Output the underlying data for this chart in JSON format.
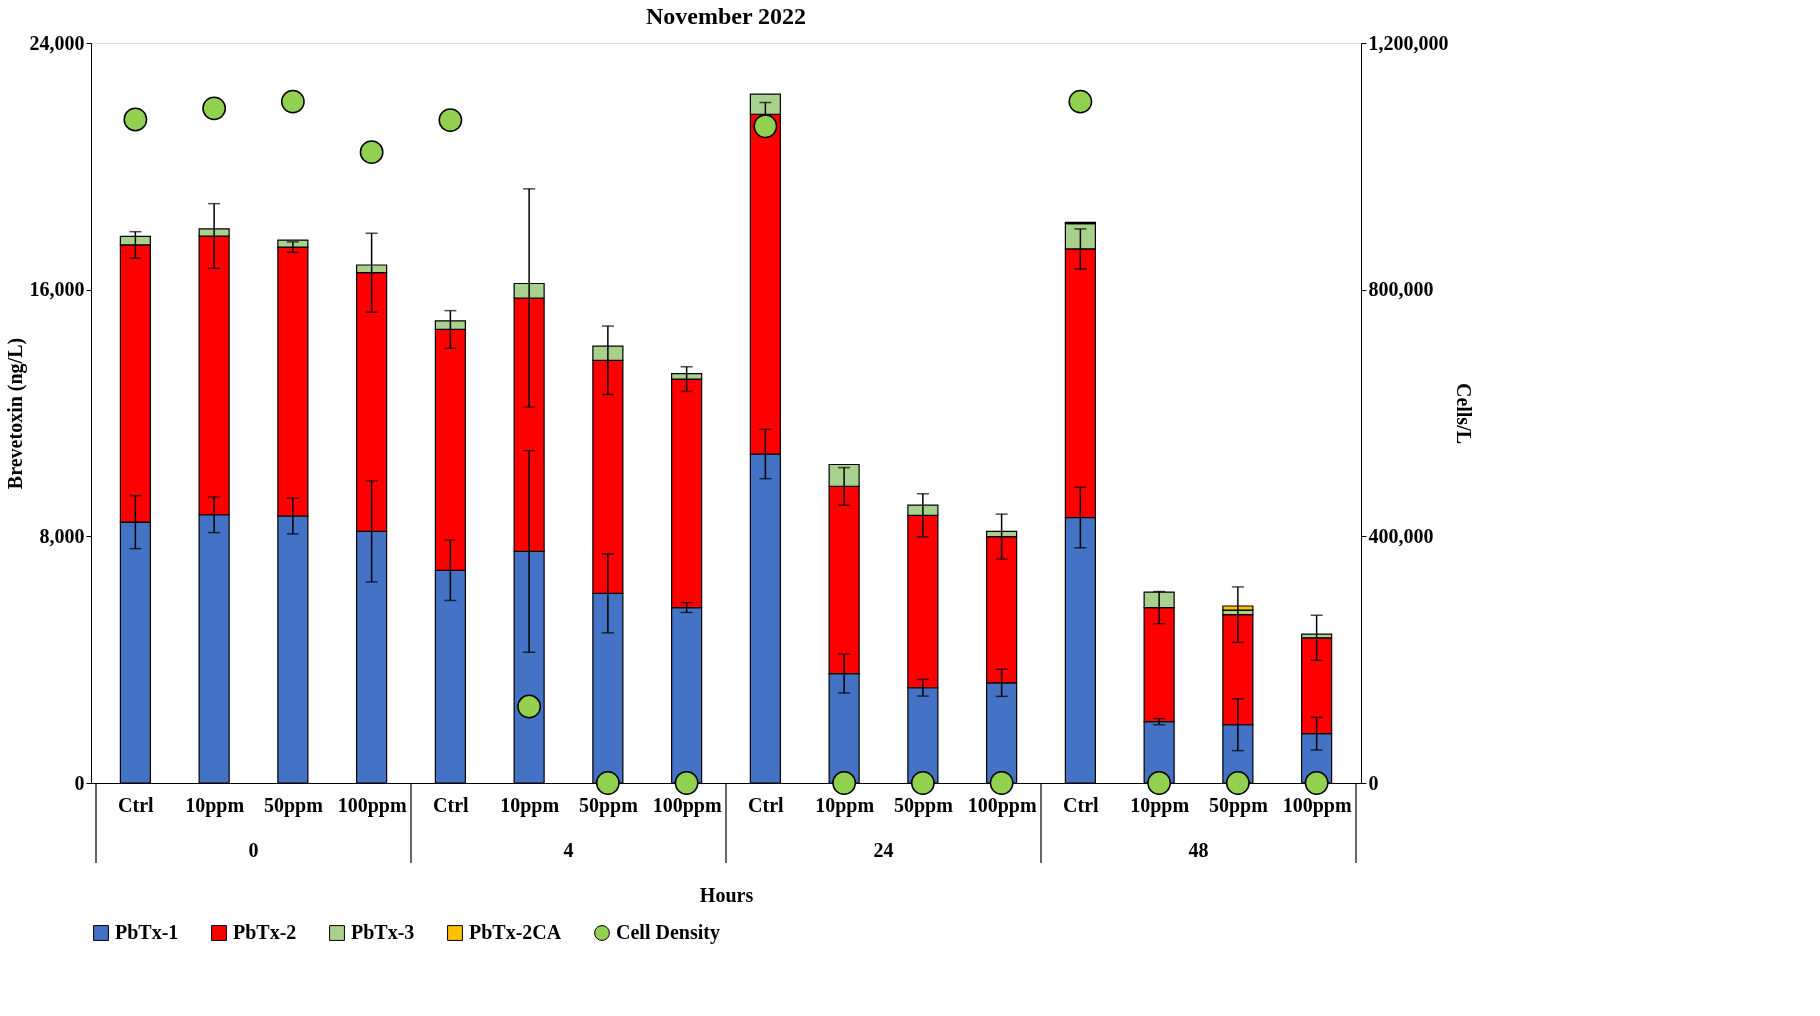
{
  "chart_data": {
    "type": "bar",
    "title": "November 2022",
    "xlabel": "Hours",
    "ylabel": "Brevetoxin (ng/L)",
    "y2label": "Cells/L",
    "categories": [
      "Ctrl",
      "10ppm",
      "50ppm",
      "100ppm",
      "Ctrl",
      "10ppm",
      "50ppm",
      "100ppm",
      "Ctrl",
      "10ppm",
      "50ppm",
      "100ppm",
      "Ctrl",
      "10ppm",
      "50ppm",
      "100ppm"
    ],
    "annotations": [
      "0",
      "4",
      "24",
      "48"
    ],
    "stacked": true,
    "series": [
      {
        "name": "PbTx-1",
        "color": "#4472c4",
        "values": [
          8460,
          8700,
          8660,
          8160,
          6900,
          7510,
          6150,
          5690,
          10670,
          3550,
          3090,
          3250,
          8610,
          1990,
          1890,
          1600
        ],
        "errors": [
          860,
          580,
          580,
          1640,
          980,
          3270,
          1280,
          160,
          800,
          630,
          270,
          440,
          980,
          100,
          840,
          530
        ]
      },
      {
        "name": "PbTx-2",
        "color": "#ff0000",
        "values": [
          8990,
          9040,
          8720,
          8390,
          7810,
          8220,
          7560,
          7410,
          11020,
          6070,
          5590,
          4740,
          8710,
          3700,
          3570,
          3110
        ],
        "errors": [
          430,
          1050,
          170,
          1280,
          610,
          3540,
          1110,
          400,
          380,
          610,
          700,
          730,
          650,
          520,
          900,
          730
        ]
      },
      {
        "name": "PbTx-3",
        "color": "#a9d18e",
        "values": [
          280,
          230,
          230,
          250,
          280,
          470,
          460,
          180,
          650,
          710,
          330,
          170,
          820,
          500,
          150,
          120
        ]
      },
      {
        "name": "PbTx-2CA",
        "color": "#ffc000",
        "values": [
          null,
          null,
          null,
          null,
          null,
          null,
          null,
          null,
          null,
          null,
          null,
          null,
          40,
          null,
          130,
          null
        ]
      },
      {
        "name": "Cell Density",
        "type": "scatter",
        "axis": "y2",
        "marker": "circle",
        "color": "#92d050",
        "values": [
          1076000,
          1094000,
          1105000,
          1023000,
          1075000,
          124000,
          0,
          0,
          1065000,
          0,
          0,
          0,
          1105000,
          0,
          0,
          0
        ]
      }
    ],
    "ylim": [
      0,
      24000
    ],
    "yticks": [
      0,
      {
        "value": 8000,
        "label": "8,000"
      },
      {
        "value": 16000,
        "label": "16,000"
      },
      {
        "value": 24000,
        "label": "24,000"
      }
    ],
    "y2lim": [
      0,
      1200000
    ],
    "y2ticks": [
      0,
      {
        "value": 400000,
        "label": "400,000"
      },
      {
        "value": 800000,
        "label": "800,000"
      },
      {
        "value": 1200000,
        "label": "1,200,000"
      }
    ],
    "grid": false,
    "legend": "bottom"
  }
}
